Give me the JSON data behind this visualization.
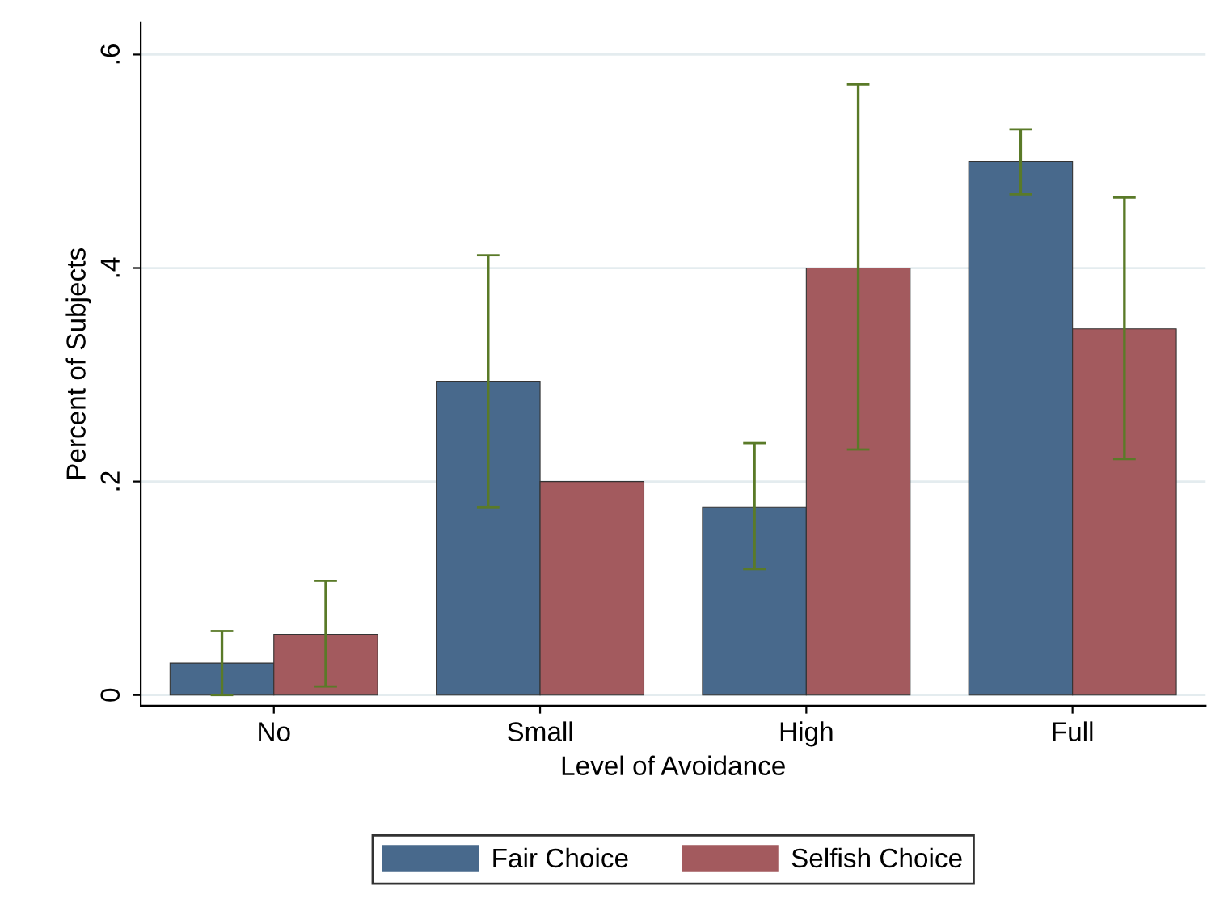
{
  "chart_data": {
    "type": "bar",
    "xlabel": "Level of Avoidance",
    "ylabel": "Percent of Subjects",
    "categories": [
      "No",
      "Small",
      "High",
      "Full"
    ],
    "series": [
      {
        "name": "Fair Choice",
        "color": "#48698c",
        "values": [
          0.03,
          0.294,
          0.176,
          0.5
        ],
        "errors": [
          [
            0,
            0.06
          ],
          [
            0.176,
            0.412
          ],
          [
            0.118,
            0.236
          ],
          [
            0.469,
            0.53
          ]
        ]
      },
      {
        "name": "Selfish Choice",
        "color": "#a35a5e",
        "values": [
          0.057,
          0.2,
          0.4,
          0.343
        ],
        "errors": [
          [
            0.008,
            0.107
          ],
          null,
          [
            0.23,
            0.572
          ],
          [
            0.221,
            0.466
          ]
        ]
      }
    ],
    "ylim": [
      -0.01,
      0.63
    ],
    "yticks": [
      {
        "value": 0,
        "label": "0"
      },
      {
        "value": 0.2,
        "label": ".2"
      },
      {
        "value": 0.4,
        "label": ".4"
      },
      {
        "value": 0.6,
        "label": ".6"
      }
    ],
    "grid": "y",
    "legend": "bottom"
  }
}
